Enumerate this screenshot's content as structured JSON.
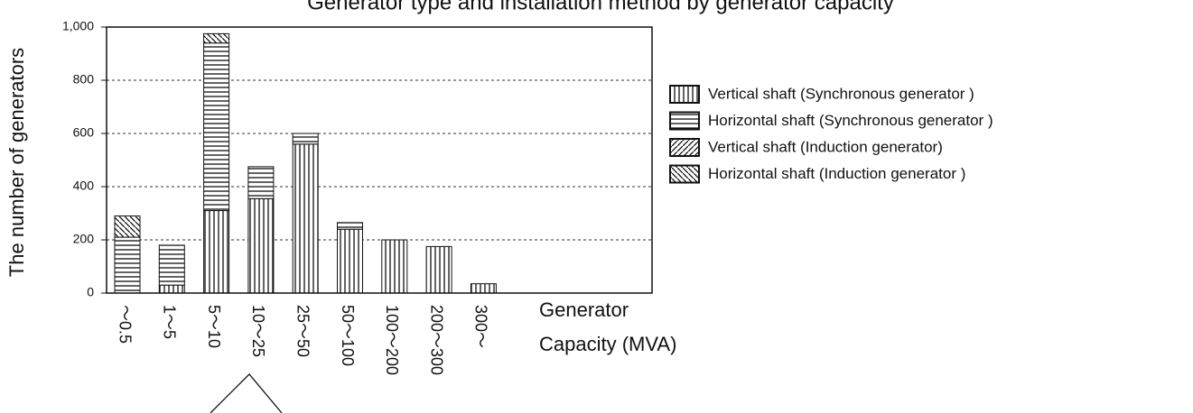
{
  "chart_data": {
    "type": "stacked_bar",
    "title": "Generator type and installation method by generator capacity",
    "y_label": "The number of generators",
    "x_label": [
      "Generator",
      "Capacity (MVA)"
    ],
    "categories": [
      "～0.5",
      "1～5",
      "5～10",
      "10～25",
      "25～50",
      "50～100",
      "100～200",
      "200～300",
      "300～"
    ],
    "series": [
      {
        "name": "Vertical shaft (Synchronous generator )",
        "color": "#111111",
        "pattern": "vertical",
        "values": [
          0,
          30,
          310,
          355,
          560,
          240,
          200,
          175,
          35
        ]
      },
      {
        "name": "Horizontal shaft (Synchronous generator )",
        "color": "#111111",
        "pattern": "horizontal",
        "values": [
          210,
          150,
          630,
          120,
          40,
          25,
          0,
          0,
          0
        ]
      },
      {
        "name": "Vertical shaft (Induction generator)",
        "color": "#111111",
        "pattern": "diagonal",
        "values": [
          0,
          0,
          0,
          0,
          0,
          0,
          0,
          0,
          0
        ]
      },
      {
        "name": "Horizontal shaft (Induction generator )",
        "color": "#111111",
        "pattern": "backdiagonal",
        "values": [
          80,
          0,
          35,
          0,
          0,
          0,
          0,
          0,
          0
        ]
      }
    ],
    "ylim": [
      0,
      1000
    ],
    "yticks": [
      0,
      200,
      400,
      600,
      800,
      {
        "value": 1000,
        "label": "1,000"
      }
    ],
    "grid": true
  }
}
